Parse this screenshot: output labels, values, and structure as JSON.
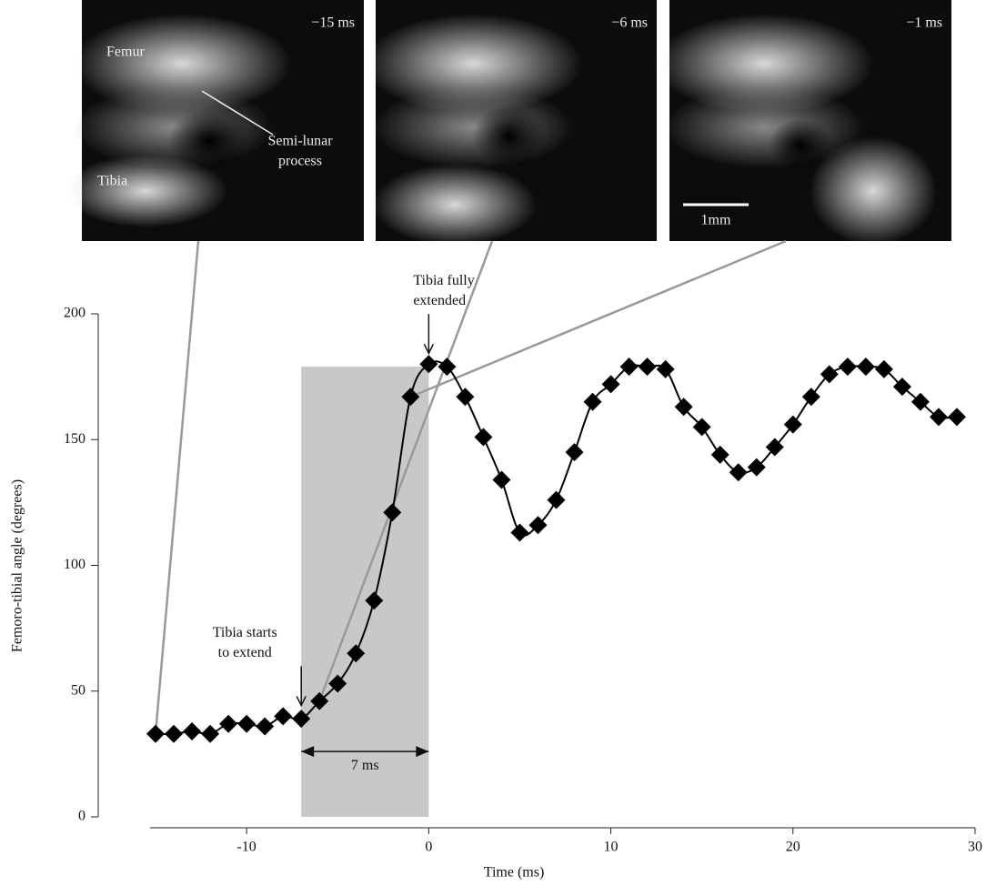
{
  "chart_data": {
    "type": "line",
    "xlabel": "Time (ms)",
    "ylabel": "Femoro-tibial angle (degrees)",
    "x": [
      -15,
      -14,
      -13,
      -12,
      -11,
      -10,
      -9,
      -8,
      -7,
      -6,
      -5,
      -4,
      -3,
      -2,
      -1,
      0,
      1,
      2,
      3,
      4,
      5,
      6,
      7,
      8,
      9,
      10,
      11,
      12,
      13,
      14,
      15,
      16,
      17,
      18,
      19,
      20,
      21,
      22,
      23,
      24,
      25,
      26,
      27,
      28,
      29
    ],
    "series": [
      {
        "color": "#000000",
        "values": [
          33,
          33,
          34,
          33,
          37,
          37,
          36,
          40,
          39,
          46,
          53,
          65,
          86,
          121,
          167,
          180,
          179,
          167,
          151,
          134,
          113,
          116,
          126,
          145,
          165,
          172,
          179,
          179,
          178,
          163,
          155,
          144,
          137,
          139,
          147,
          156,
          167,
          176,
          179,
          179,
          178,
          171,
          165,
          159,
          159
        ]
      }
    ],
    "xlim": [
      -15.3,
      30
    ],
    "ylim": [
      0,
      200
    ],
    "xticks": [
      -10,
      0,
      10,
      20,
      30
    ],
    "yticks": [
      0,
      50,
      100,
      150,
      200
    ],
    "shaded_region": {
      "x": [
        -7,
        0
      ],
      "y": [
        0,
        179
      ],
      "color": "#c8c8c8"
    },
    "annotations": [
      {
        "lines": [
          "Tibia starts",
          "to extend"
        ],
        "x": -7,
        "y": 40
      },
      {
        "lines": [
          "Tibia fully",
          "extended"
        ],
        "x": 0,
        "y": 180
      }
    ],
    "span": {
      "text": "7 ms",
      "x": [
        -7,
        0
      ],
      "y": 26
    }
  },
  "panels": [
    {
      "time": "−15 ms",
      "x": -15,
      "labels": [
        "Femur",
        "Tibia",
        "Semi-lunar",
        "process"
      ]
    },
    {
      "time": "−6 ms",
      "x": -6,
      "labels": []
    },
    {
      "time": "−1 ms",
      "x": -1,
      "labels": [
        "1mm"
      ]
    }
  ]
}
